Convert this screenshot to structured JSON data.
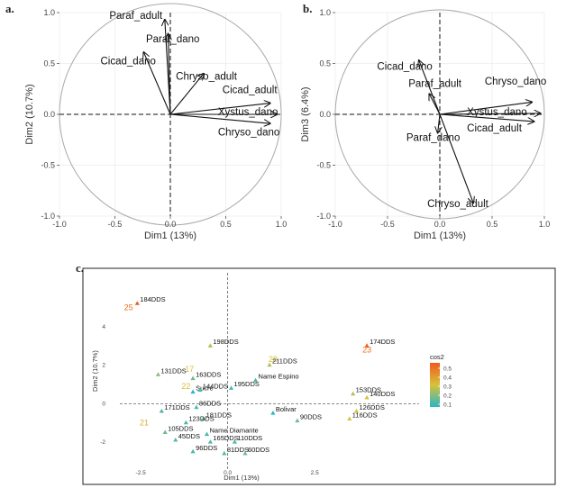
{
  "panel_letters": {
    "a": "a.",
    "b": "b.",
    "c": "c."
  },
  "chart_data": [
    {
      "type": "scatter",
      "subtype": "pca-variable-correlation-circle",
      "panel": "a.",
      "xlabel": "Dim1 (13%)",
      "ylabel": "Dim2 (10.7%)",
      "xlim": [
        -1.0,
        1.0
      ],
      "ylim": [
        -1.0,
        1.0
      ],
      "xticks": [
        "-1.0",
        "-0.5",
        "0.0",
        "0.5",
        "1.0"
      ],
      "yticks": [
        "-1.0",
        "-0.5",
        "0.0",
        "0.5",
        "1.0"
      ],
      "grid": true,
      "vectors": [
        {
          "name": "Paraf_adult",
          "x": -0.05,
          "y": 0.93,
          "lx": -0.55,
          "ly": 0.94
        },
        {
          "name": "Paraf_dano",
          "x": -0.02,
          "y": 0.79,
          "lx": -0.22,
          "ly": 0.71
        },
        {
          "name": "Cicad_dano",
          "x": -0.24,
          "y": 0.61,
          "lx": -0.63,
          "ly": 0.49
        },
        {
          "name": "Chryso_adult",
          "x": 0.3,
          "y": 0.4,
          "lx": 0.05,
          "ly": 0.34
        },
        {
          "name": "Cicad_adult",
          "x": 0.9,
          "y": 0.11,
          "lx": 0.47,
          "ly": 0.21
        },
        {
          "name": "Xystus_dano",
          "x": 0.96,
          "y": 0.0,
          "lx": 0.43,
          "ly": -0.01
        },
        {
          "name": "Chryso_dano",
          "x": 0.9,
          "y": -0.09,
          "lx": 0.43,
          "ly": -0.21
        }
      ]
    },
    {
      "type": "scatter",
      "subtype": "pca-variable-correlation-circle",
      "panel": "b.",
      "xlabel": "Dim1 (13%)",
      "ylabel": "Dim3 (6.4%)",
      "xlim": [
        -1.0,
        1.0
      ],
      "ylim": [
        -1.0,
        1.0
      ],
      "xticks": [
        "-1.0",
        "-0.5",
        "0.0",
        "0.5",
        "1.0"
      ],
      "yticks": [
        "-1.0",
        "-0.5",
        "0.0",
        "0.5",
        "1.0"
      ],
      "grid": true,
      "vectors": [
        {
          "name": "Cicad_dano",
          "x": -0.2,
          "y": 0.53,
          "lx": -0.6,
          "ly": 0.44
        },
        {
          "name": "Paraf_adult",
          "x": -0.1,
          "y": 0.2,
          "lx": -0.3,
          "ly": 0.27
        },
        {
          "name": "Chryso_dano",
          "x": 0.88,
          "y": 0.12,
          "lx": 0.43,
          "ly": 0.29
        },
        {
          "name": "Xystus_dano",
          "x": 0.96,
          "y": 0.01,
          "lx": 0.26,
          "ly": -0.01
        },
        {
          "name": "Cicad_adult",
          "x": 0.9,
          "y": -0.07,
          "lx": 0.26,
          "ly": -0.17
        },
        {
          "name": "Paraf_dano",
          "x": -0.02,
          "y": -0.18,
          "lx": -0.32,
          "ly": -0.26
        },
        {
          "name": "Chryso_adult",
          "x": 0.32,
          "y": -0.87,
          "lx": -0.12,
          "ly": -0.91
        }
      ]
    },
    {
      "type": "scatter",
      "subtype": "pca-individuals",
      "panel": "c.",
      "xlabel": "Dim1 (13%)",
      "ylabel": "Dim2 (10.7%)",
      "xlim": [
        -3.1,
        5.5
      ],
      "ylim": [
        -3.4,
        6.8
      ],
      "xticks": [
        "-2.5",
        "0.0",
        "2.5"
      ],
      "yticks": [
        "-2",
        "0",
        "2",
        "4"
      ],
      "legend": {
        "title": "cos2",
        "position": "right",
        "ticks": [
          "0.5",
          "0.4",
          "0.3",
          "0.2",
          "0.1"
        ]
      },
      "color_scale": {
        "low": "#2ab5c6",
        "mid": "#d7c23a",
        "high": "#f15a1e"
      },
      "points": [
        {
          "label": "184DDS",
          "x": -2.6,
          "y": 5.2,
          "cos2": 0.55
        },
        {
          "label": "25",
          "x": -2.85,
          "y": 5.0,
          "cos2": 0.5,
          "marker": false
        },
        {
          "label": "198DDS",
          "x": -0.5,
          "y": 3.0,
          "cos2": 0.25
        },
        {
          "label": "174DDS",
          "x": 4.0,
          "y": 3.0,
          "cos2": 0.55
        },
        {
          "label": "23",
          "x": 4.0,
          "y": 2.8,
          "cos2": 0.5,
          "marker": false
        },
        {
          "label": "28",
          "x": 1.3,
          "y": 2.3,
          "cos2": 0.3,
          "marker": false
        },
        {
          "label": "211DDS",
          "x": 1.2,
          "y": 2.0,
          "cos2": 0.25
        },
        {
          "label": "131DDS",
          "x": -2.0,
          "y": 1.5,
          "cos2": 0.2
        },
        {
          "label": "17",
          "x": -1.1,
          "y": 1.8,
          "cos2": 0.3,
          "marker": false
        },
        {
          "label": "163DDS",
          "x": -1.0,
          "y": 1.3,
          "cos2": 0.15
        },
        {
          "label": "Name Espino",
          "x": 0.8,
          "y": 1.2,
          "cos2": 0.1
        },
        {
          "label": "195DDS",
          "x": 0.1,
          "y": 0.8,
          "cos2": 0.1
        },
        {
          "label": "22",
          "x": -1.2,
          "y": 0.9,
          "cos2": 0.3,
          "marker": false
        },
        {
          "label": "Sucre",
          "x": -1.0,
          "y": 0.6,
          "cos2": 0.05
        },
        {
          "label": "144DDS",
          "x": -0.8,
          "y": 0.7,
          "cos2": 0.1
        },
        {
          "label": "153DDS",
          "x": 3.6,
          "y": 0.5,
          "cos2": 0.25
        },
        {
          "label": "140DDS",
          "x": 4.0,
          "y": 0.3,
          "cos2": 0.3
        },
        {
          "label": "171DDS",
          "x": -1.9,
          "y": -0.4,
          "cos2": 0.1
        },
        {
          "label": "86DDS",
          "x": -0.9,
          "y": -0.2,
          "cos2": 0.1
        },
        {
          "label": "Bolivar",
          "x": 1.3,
          "y": -0.5,
          "cos2": 0.05
        },
        {
          "label": "181DDS",
          "x": -0.7,
          "y": -0.8,
          "cos2": 0.1
        },
        {
          "label": "126DDS",
          "x": 3.7,
          "y": -0.4,
          "cos2": 0.3
        },
        {
          "label": "90DDS",
          "x": 2.0,
          "y": -0.9,
          "cos2": 0.15
        },
        {
          "label": "123DDS",
          "x": -1.2,
          "y": -1.0,
          "cos2": 0.1
        },
        {
          "label": "116DDS",
          "x": 3.5,
          "y": -0.8,
          "cos2": 0.3
        },
        {
          "label": "21",
          "x": -2.4,
          "y": -1.0,
          "cos2": 0.35,
          "marker": false
        },
        {
          "label": "105DDS",
          "x": -1.8,
          "y": -1.5,
          "cos2": 0.15
        },
        {
          "label": "45DDS",
          "x": -1.5,
          "y": -1.9,
          "cos2": 0.1
        },
        {
          "label": "Name Diamante",
          "x": -0.6,
          "y": -1.6,
          "cos2": 0.1
        },
        {
          "label": "165DDS",
          "x": -0.5,
          "y": -2.0,
          "cos2": 0.1
        },
        {
          "label": "110DDS",
          "x": 0.2,
          "y": -2.0,
          "cos2": 0.1
        },
        {
          "label": "96DDS",
          "x": -1.0,
          "y": -2.5,
          "cos2": 0.1
        },
        {
          "label": "81DDS",
          "x": -0.1,
          "y": -2.6,
          "cos2": 0.1
        },
        {
          "label": "60DDS",
          "x": 0.5,
          "y": -2.6,
          "cos2": 0.15
        }
      ]
    }
  ]
}
